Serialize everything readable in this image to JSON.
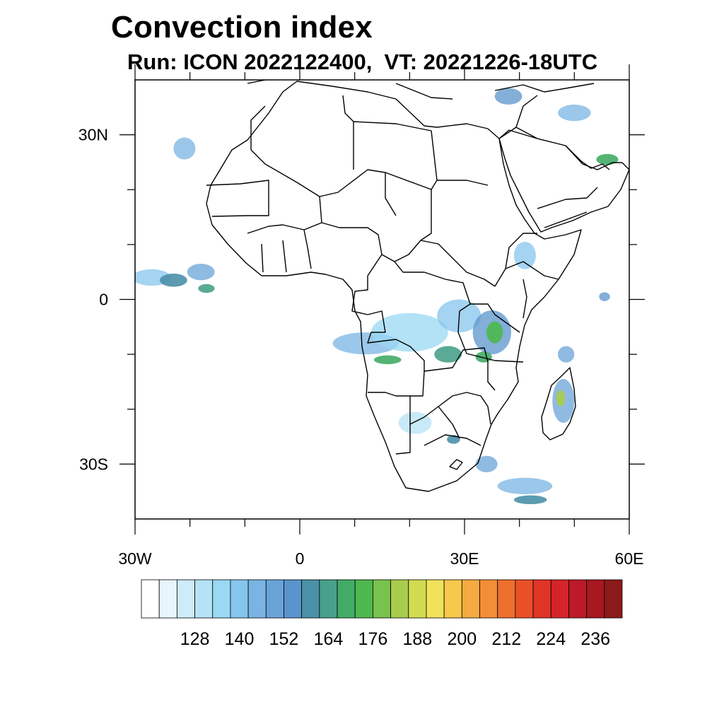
{
  "title": "Convection index",
  "subtitle": "Run: ICON 2022122400,  VT: 20221226-18UTC",
  "map": {
    "lon_range": [
      -30,
      60
    ],
    "lat_range": [
      -40,
      40
    ],
    "x_tick_labels": [
      {
        "lon": -30,
        "label": "30W"
      },
      {
        "lon": 0,
        "label": "0"
      },
      {
        "lon": 30,
        "label": "30E"
      },
      {
        "lon": 60,
        "label": "60E"
      }
    ],
    "y_tick_labels": [
      {
        "lat": 30,
        "label": "30N"
      },
      {
        "lat": 0,
        "label": "0"
      },
      {
        "lat": -30,
        "label": "30S"
      }
    ],
    "minor_lon_ticks": [
      -20,
      -10,
      10,
      20,
      40,
      50
    ],
    "minor_lat_ticks": [
      20,
      10,
      -10,
      -20
    ]
  },
  "colorbar": {
    "colors": [
      "#ffffff",
      "#e8f5fd",
      "#cdebf8",
      "#b5e2f6",
      "#9ad8f4",
      "#86c5ec",
      "#79b4e3",
      "#6aa3d8",
      "#5a94cc",
      "#4a90a8",
      "#48a18a",
      "#42ac66",
      "#4db84e",
      "#78c24e",
      "#a8cd4e",
      "#d2dc50",
      "#f0e25a",
      "#f8c84c",
      "#f6aa40",
      "#f48e36",
      "#ee6e2c",
      "#e85028",
      "#e03426",
      "#d42429",
      "#bc1a28",
      "#a81820",
      "#8c1a1a"
    ],
    "labels": [
      "128",
      "140",
      "152",
      "164",
      "176",
      "188",
      "200",
      "212",
      "224",
      "236"
    ]
  },
  "fields": [
    {
      "lon": -27,
      "lat": 4,
      "rx": 3.5,
      "ry": 1.5,
      "level": 5
    },
    {
      "lon": -23,
      "lat": 3.5,
      "rx": 2.5,
      "ry": 1.2,
      "level": 9
    },
    {
      "lon": -18,
      "lat": 5,
      "rx": 2.5,
      "ry": 1.5,
      "level": 7
    },
    {
      "lon": -17,
      "lat": 2,
      "rx": 1.5,
      "ry": 0.8,
      "level": 10
    },
    {
      "lon": -21,
      "lat": 27.5,
      "rx": 2,
      "ry": 2,
      "level": 6
    },
    {
      "lon": 12,
      "lat": -8,
      "rx": 6,
      "ry": 2,
      "level": 6
    },
    {
      "lon": 16,
      "lat": -11,
      "rx": 2.5,
      "ry": 0.8,
      "level": 11
    },
    {
      "lon": 20,
      "lat": -6,
      "rx": 7,
      "ry": 3.5,
      "level": 4
    },
    {
      "lon": 27,
      "lat": -10,
      "rx": 2.5,
      "ry": 1.5,
      "level": 10
    },
    {
      "lon": 29,
      "lat": -3,
      "rx": 4,
      "ry": 3,
      "level": 5
    },
    {
      "lon": 35,
      "lat": -6,
      "rx": 3.5,
      "ry": 4,
      "level": 8
    },
    {
      "lon": 35.5,
      "lat": -6,
      "rx": 1.5,
      "ry": 2,
      "level": 12
    },
    {
      "lon": 33.5,
      "lat": -10.5,
      "rx": 1.5,
      "ry": 1,
      "level": 11
    },
    {
      "lon": 21,
      "lat": -22.5,
      "rx": 3,
      "ry": 2,
      "level": 3
    },
    {
      "lon": 28,
      "lat": -25.5,
      "rx": 1.2,
      "ry": 0.8,
      "level": 9
    },
    {
      "lon": 48,
      "lat": -18.5,
      "rx": 2,
      "ry": 4,
      "level": 7
    },
    {
      "lon": 47.5,
      "lat": -18,
      "rx": 0.8,
      "ry": 1.5,
      "level": 14
    },
    {
      "lon": 34,
      "lat": -30,
      "rx": 2,
      "ry": 1.5,
      "level": 7
    },
    {
      "lon": 41,
      "lat": -34,
      "rx": 5,
      "ry": 1.5,
      "level": 6
    },
    {
      "lon": 42,
      "lat": -36.5,
      "rx": 3,
      "ry": 0.8,
      "level": 9
    },
    {
      "lon": 50,
      "lat": 34,
      "rx": 3,
      "ry": 1.5,
      "level": 6
    },
    {
      "lon": 38,
      "lat": 37,
      "rx": 2.5,
      "ry": 1.5,
      "level": 8
    },
    {
      "lon": 56,
      "lat": 25.5,
      "rx": 2,
      "ry": 1,
      "level": 11
    },
    {
      "lon": 41,
      "lat": 8,
      "rx": 2,
      "ry": 2.5,
      "level": 5
    },
    {
      "lon": 48.5,
      "lat": -10,
      "rx": 1.5,
      "ry": 1.5,
      "level": 7
    },
    {
      "lon": 55.5,
      "lat": 0.5,
      "rx": 1,
      "ry": 0.8,
      "level": 8
    }
  ]
}
